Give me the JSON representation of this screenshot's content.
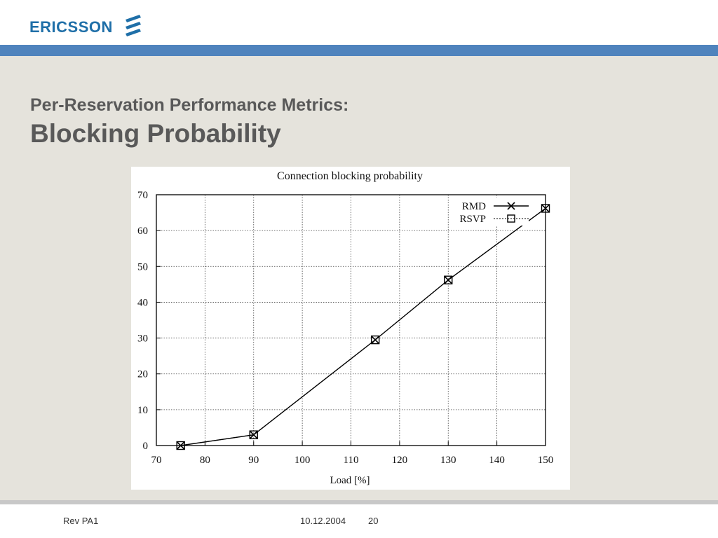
{
  "brand": {
    "name": "ERICSSON",
    "logo_icon": "ericsson-stripes-icon"
  },
  "slide": {
    "subtitle": "Per-Reservation Performance Metrics:",
    "title": "Blocking Probability"
  },
  "footer": {
    "revision": "Rev PA1",
    "date": "10.12.2004",
    "page": "20"
  },
  "colors": {
    "brand_blue": "#1f6fa8",
    "band_blue": "#4f83bd",
    "slide_bg": "#e5e3dc",
    "title_grey": "#595959"
  },
  "chart_data": {
    "type": "line",
    "title": "Connection blocking probability",
    "xlabel": "Load [%]",
    "ylabel": "",
    "xlim": [
      70,
      150
    ],
    "ylim": [
      0,
      70
    ],
    "xticks": [
      70,
      80,
      90,
      100,
      110,
      120,
      130,
      140,
      150
    ],
    "yticks": [
      0,
      10,
      20,
      30,
      40,
      50,
      60,
      70
    ],
    "grid": true,
    "legend": "top-right",
    "x": [
      75,
      90,
      115,
      130,
      150
    ],
    "series": [
      {
        "name": "RMD",
        "marker": "x",
        "line": "solid",
        "values": [
          0,
          3,
          29.5,
          46.2,
          66.2
        ]
      },
      {
        "name": "RSVP",
        "marker": "square",
        "line": "dotted",
        "values": [
          0,
          3,
          29.5,
          46.2,
          66.2
        ]
      }
    ]
  }
}
